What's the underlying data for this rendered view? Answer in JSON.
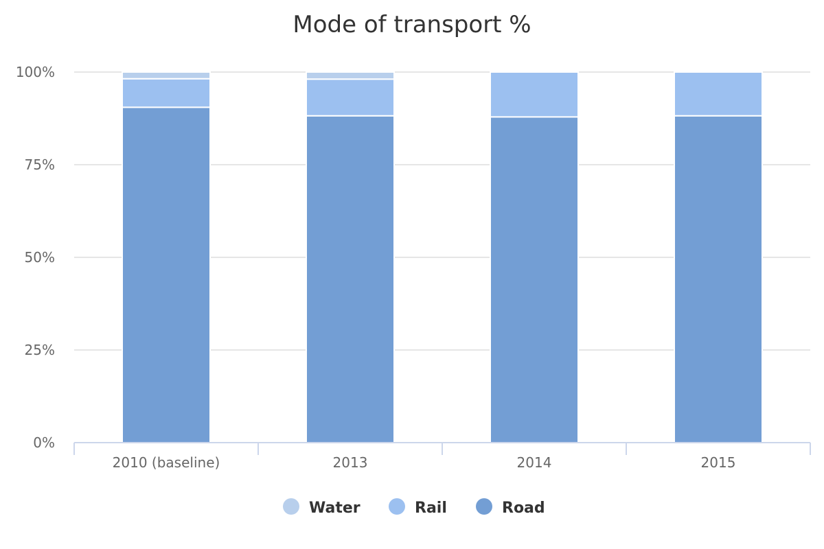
{
  "chart_data": {
    "type": "bar",
    "stacked": true,
    "title": "Mode of transport %",
    "categories": [
      "2010 (baseline)",
      "2013",
      "2014",
      "2015"
    ],
    "yticks": [
      "0%",
      "25%",
      "50%",
      "75%",
      "100%"
    ],
    "ylim": [
      0,
      100
    ],
    "grid": true,
    "legend_position": "bottom-center",
    "series": [
      {
        "name": "Road",
        "color": "#739ed4",
        "values": [
          90.5,
          88.2,
          87.9,
          88.2
        ]
      },
      {
        "name": "Rail",
        "color": "#9cc0f0",
        "values": [
          7.7,
          9.9,
          12.1,
          11.8
        ]
      },
      {
        "name": "Water",
        "color": "#b8cfec",
        "values": [
          1.8,
          1.9,
          0,
          0
        ]
      }
    ],
    "legend_order": [
      "Water",
      "Rail",
      "Road"
    ]
  }
}
